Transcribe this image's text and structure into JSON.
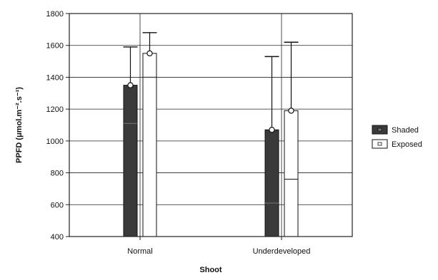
{
  "chart_data": {
    "type": "bar",
    "title": "",
    "xlabel": "Shoot",
    "ylabel": "PPFD (μmol.m⁻².s⁻¹)",
    "ylim": [
      400,
      1800
    ],
    "yticks": [
      400,
      600,
      800,
      1000,
      1200,
      1400,
      1600,
      1800
    ],
    "categories": [
      "Normal",
      "Underdeveloped"
    ],
    "grid": true,
    "legend_position": "right",
    "series": [
      {
        "name": "Shaded",
        "color": "#3a3a3a",
        "values": [
          1350,
          1070
        ],
        "box_lower": [
          1110,
          610
        ],
        "whisker_high": [
          1590,
          1530
        ],
        "whisker_low": [
          400,
          400
        ]
      },
      {
        "name": "Exposed",
        "color": "#ffffff",
        "values": [
          1550,
          1190
        ],
        "box_lower": [
          1400,
          760
        ],
        "whisker_high": [
          1680,
          1620
        ],
        "whisker_low": [
          400,
          400
        ]
      }
    ]
  }
}
